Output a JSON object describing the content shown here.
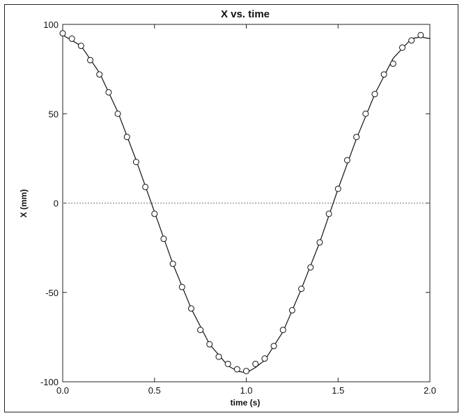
{
  "chart_data": {
    "type": "scatter",
    "title": "X vs. time",
    "xlabel": "time (s)",
    "ylabel": "X (mm)",
    "xlim": [
      0.0,
      2.0
    ],
    "ylim": [
      -100,
      100
    ],
    "x_ticks": [
      "0.0",
      "0.5",
      "1.0",
      "1.5",
      "2.0"
    ],
    "y_ticks": [
      "100",
      "50",
      "0",
      "-50",
      "-100"
    ],
    "x_tick_values": [
      0.0,
      0.5,
      1.0,
      1.5,
      2.0
    ],
    "y_tick_values": [
      100,
      50,
      0,
      -50,
      -100
    ],
    "grid": false,
    "zero_line": true,
    "series": [
      {
        "kind": "points",
        "marker": "open-circle",
        "x": [
          0.0,
          0.05,
          0.1,
          0.15,
          0.2,
          0.25,
          0.3,
          0.35,
          0.4,
          0.45,
          0.5,
          0.55,
          0.6,
          0.65,
          0.7,
          0.75,
          0.8,
          0.85,
          0.9,
          0.95,
          1.0,
          1.05,
          1.1,
          1.15,
          1.2,
          1.25,
          1.3,
          1.35,
          1.4,
          1.45,
          1.5,
          1.55,
          1.6,
          1.65,
          1.7,
          1.75,
          1.8,
          1.85,
          1.9,
          1.95
        ],
        "y": [
          95,
          92,
          88,
          80,
          72,
          62,
          50,
          37,
          23,
          9,
          -6,
          -20,
          -34,
          -47,
          -59,
          -71,
          -79,
          -86,
          -90,
          -93,
          -94,
          -90,
          -87,
          -80,
          -71,
          -60,
          -48,
          -36,
          -22,
          -6,
          8,
          24,
          37,
          50,
          61,
          72,
          78,
          87,
          91,
          94
        ]
      },
      {
        "kind": "line",
        "x": [
          0.0,
          0.1,
          0.2,
          0.3,
          0.4,
          0.5,
          0.6,
          0.7,
          0.8,
          0.9,
          0.95,
          1.0,
          1.05,
          1.1,
          1.2,
          1.3,
          1.4,
          1.5,
          1.6,
          1.7,
          1.8,
          1.9,
          1.95,
          2.0
        ],
        "y": [
          94,
          88,
          73,
          51,
          24,
          -5,
          -34,
          -59,
          -79,
          -91,
          -94,
          -95,
          -92,
          -88,
          -72,
          -48,
          -22,
          8,
          36,
          61,
          81,
          92,
          93,
          92
        ]
      }
    ]
  }
}
